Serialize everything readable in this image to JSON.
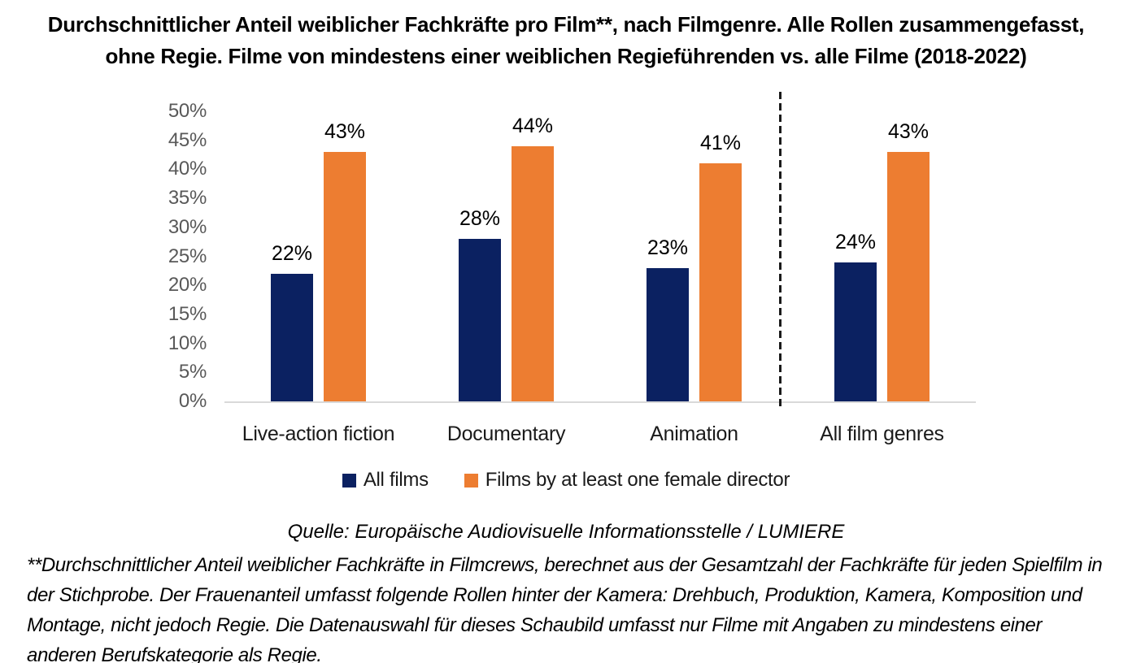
{
  "title": "Durchschnittlicher Anteil weiblicher Fachkräfte pro Film**, nach Filmgenre. Alle Rollen zusammengefasst, ohne Regie. Filme von mindestens einer weiblichen Regieführenden vs. alle Filme (2018-2022)",
  "source": "Quelle: Europäische Audiovisuelle Informationsstelle / LUMIERE",
  "footnote": "**Durchschnittlicher Anteil weiblicher Fachkräfte in Filmcrews, berechnet aus der Gesamtzahl der Fachkräfte für jeden Spielfilm in der Stichprobe. Der Frauenanteil umfasst folgende Rollen hinter der Kamera: Drehbuch, Produktion, Kamera, Komposition und Montage, nicht jedoch Regie. Die Datenauswahl für dieses Schaubild umfasst nur Filme mit Angaben zu mindestens einer anderen Berufskategorie als Regie.",
  "chart_data": {
    "type": "bar",
    "categories": [
      "Live-action fiction",
      "Documentary",
      "Animation",
      "All film genres"
    ],
    "series": [
      {
        "name": "All films",
        "color": "#0b2161",
        "values": [
          22,
          28,
          23,
          24
        ],
        "labels": [
          "22%",
          "28%",
          "23%",
          "24%"
        ]
      },
      {
        "name": "Films by at least one female director",
        "color": "#ed7d31",
        "values": [
          43,
          44,
          41,
          43
        ],
        "labels": [
          "43%",
          "44%",
          "41%",
          "43%"
        ]
      }
    ],
    "ylim": [
      0,
      50
    ],
    "y_tick_step": 5,
    "y_tick_labels": [
      "0%",
      "5%",
      "10%",
      "15%",
      "20%",
      "25%",
      "30%",
      "35%",
      "40%",
      "45%",
      "50%"
    ],
    "y_tick_color": "#595959",
    "axis_line_color": "#d9d9d9",
    "grid": false,
    "legend_position": "bottom",
    "data_labels": true,
    "separator": {
      "style": "dashed",
      "before_category": "All film genres"
    }
  }
}
